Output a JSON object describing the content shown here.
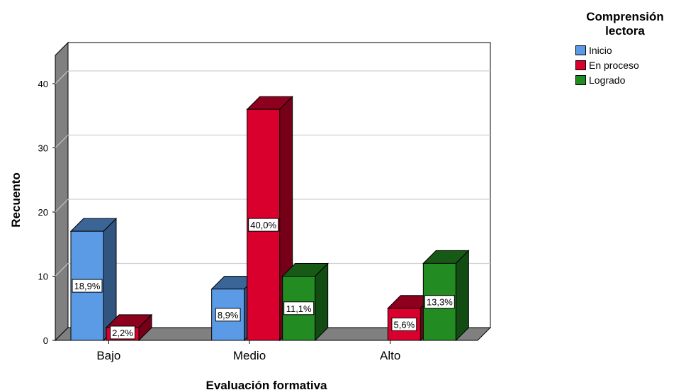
{
  "chart_data": {
    "type": "bar",
    "xlabel": "Evaluación formativa",
    "ylabel": "Recuento",
    "categories": [
      "Bajo",
      "Medio",
      "Alto"
    ],
    "yticks": [
      0,
      10,
      20,
      30,
      40
    ],
    "ylim": [
      0,
      40
    ],
    "grid": true,
    "legend_position": "top-right",
    "legend_title": "Comprensión lectora",
    "series": [
      {
        "name": "Inicio",
        "color": "#5b9be6",
        "values": [
          17,
          8,
          null
        ],
        "labels": [
          "18,9%",
          "8,9%",
          ""
        ]
      },
      {
        "name": "En proceso",
        "color": "#d9002e",
        "values": [
          2,
          36,
          5
        ],
        "labels": [
          "2,2%",
          "40,0%",
          "5,6%"
        ]
      },
      {
        "name": "Logrado",
        "color": "#228b22",
        "values": [
          null,
          10,
          12
        ],
        "labels": [
          "",
          "11,1%",
          "13,3%"
        ]
      }
    ]
  }
}
